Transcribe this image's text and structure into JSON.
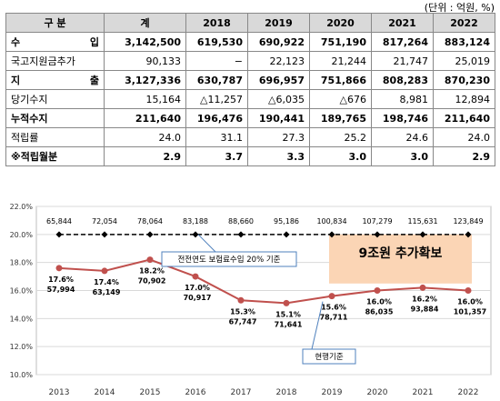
{
  "table": {
    "unit": "(단위 : 억원, %)",
    "columns": [
      "구 분",
      "계",
      "2018",
      "2019",
      "2020",
      "2021",
      "2022"
    ],
    "rows": [
      {
        "label": "수 입",
        "values": [
          "3,142,500",
          "619,530",
          "690,922",
          "751,190",
          "817,264",
          "883,124"
        ]
      },
      {
        "label": "국고지원금추가",
        "values": [
          "90,133",
          "−",
          "22,123",
          "21,244",
          "21,747",
          "25,019"
        ]
      },
      {
        "label": "지 출",
        "values": [
          "3,127,336",
          "630,787",
          "696,957",
          "751,866",
          "808,283",
          "870,230"
        ]
      },
      {
        "label": "당기수지",
        "values": [
          "15,164",
          "△11,257",
          "△6,035",
          "△676",
          "8,981",
          "12,894"
        ]
      },
      {
        "label": "누적수지",
        "values": [
          "211,640",
          "196,476",
          "190,441",
          "189,765",
          "198,746",
          "211,640"
        ]
      },
      {
        "label": "적립률",
        "values": [
          "24.0",
          "31.1",
          "27.3",
          "25.2",
          "24.6",
          "24.0"
        ]
      },
      {
        "label": "※적립월분",
        "values": [
          "2.9",
          "3.7",
          "3.3",
          "3.0",
          "3.0",
          "2.9"
        ]
      }
    ]
  },
  "chart_data": {
    "type": "line",
    "x": [
      "2013",
      "2014",
      "2015",
      "2016",
      "2017",
      "2018",
      "2019",
      "2020",
      "2021",
      "2022"
    ],
    "ylim": [
      10,
      22
    ],
    "yticks": [
      "10.0%",
      "12.0%",
      "14.0%",
      "16.0%",
      "18.0%",
      "20.0%",
      "22.0%"
    ],
    "series": [
      {
        "name": "전전연도 보험료수입 20% 기준",
        "values": [
          20,
          20,
          20,
          20,
          20,
          20,
          20,
          20,
          20,
          20
        ],
        "labels": [
          "65,844",
          "72,054",
          "78,064",
          "83,188",
          "88,660",
          "95,186",
          "100,834",
          "107,279",
          "115,631",
          "123,849"
        ],
        "color": "#000000"
      },
      {
        "name": "현행기준",
        "values": [
          17.6,
          17.4,
          18.2,
          17.0,
          15.3,
          15.1,
          15.6,
          16.0,
          16.2,
          16.0
        ],
        "pct_labels": [
          "17.6%",
          "17.4%",
          "18.2%",
          "17.0%",
          "15.3%",
          "15.1%",
          "15.6%",
          "16.0%",
          "16.2%",
          "16.0%"
        ],
        "amt_labels": [
          "57,994",
          "63,149",
          "70,902",
          "70,917",
          "67,747",
          "71,641",
          "78,711",
          "86,035",
          "93,884",
          "101,357"
        ],
        "color": "#c0504d"
      }
    ],
    "highlight": {
      "text": "9조원 추가확보",
      "color": "#fbd5b5"
    },
    "grid": "horizontal"
  }
}
